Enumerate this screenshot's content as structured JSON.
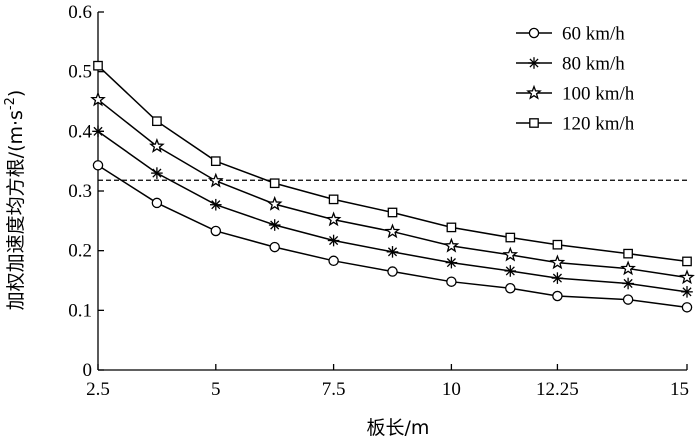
{
  "chart_data": {
    "type": "line",
    "xlabel": "板长/m",
    "ylabel": "加权加速度均方根/(m·s",
    "ylabel_sup": "-2",
    "ylabel_tail": ")",
    "xlim": [
      2.5,
      15
    ],
    "ylim": [
      0,
      0.6
    ],
    "x_ticks": [
      2.5,
      5,
      7.5,
      10,
      12.25,
      15
    ],
    "x_tick_labels": [
      "2.5",
      "5",
      "7.5",
      "10",
      "12.25",
      "15"
    ],
    "y_ticks": [
      0,
      0.1,
      0.2,
      0.3,
      0.4,
      0.5,
      0.6
    ],
    "y_tick_labels": [
      "0",
      "0.1",
      "0.2",
      "0.3",
      "0.4",
      "0.5",
      "0.6"
    ],
    "x": [
      2.5,
      3.75,
      5,
      6.25,
      7.5,
      8.75,
      10,
      11.25,
      12.25,
      13.75,
      15
    ],
    "series": [
      {
        "name": "60 km/h",
        "marker": "circle",
        "values": [
          0.343,
          0.28,
          0.233,
          0.206,
          0.183,
          0.165,
          0.148,
          0.137,
          0.124,
          0.118,
          0.105
        ]
      },
      {
        "name": "80 km/h",
        "marker": "asterisk",
        "values": [
          0.4,
          0.33,
          0.277,
          0.243,
          0.217,
          0.198,
          0.18,
          0.166,
          0.154,
          0.145,
          0.131
        ]
      },
      {
        "name": "100 km/h",
        "marker": "star",
        "values": [
          0.453,
          0.375,
          0.317,
          0.278,
          0.252,
          0.232,
          0.208,
          0.193,
          0.18,
          0.17,
          0.155
        ]
      },
      {
        "name": "120 km/h",
        "marker": "square",
        "values": [
          0.51,
          0.417,
          0.35,
          0.313,
          0.286,
          0.264,
          0.239,
          0.222,
          0.21,
          0.195,
          0.182
        ]
      }
    ],
    "reference_line": {
      "y": 0.318,
      "style": "dashed"
    },
    "legend_position": "top-right",
    "grid": false
  }
}
